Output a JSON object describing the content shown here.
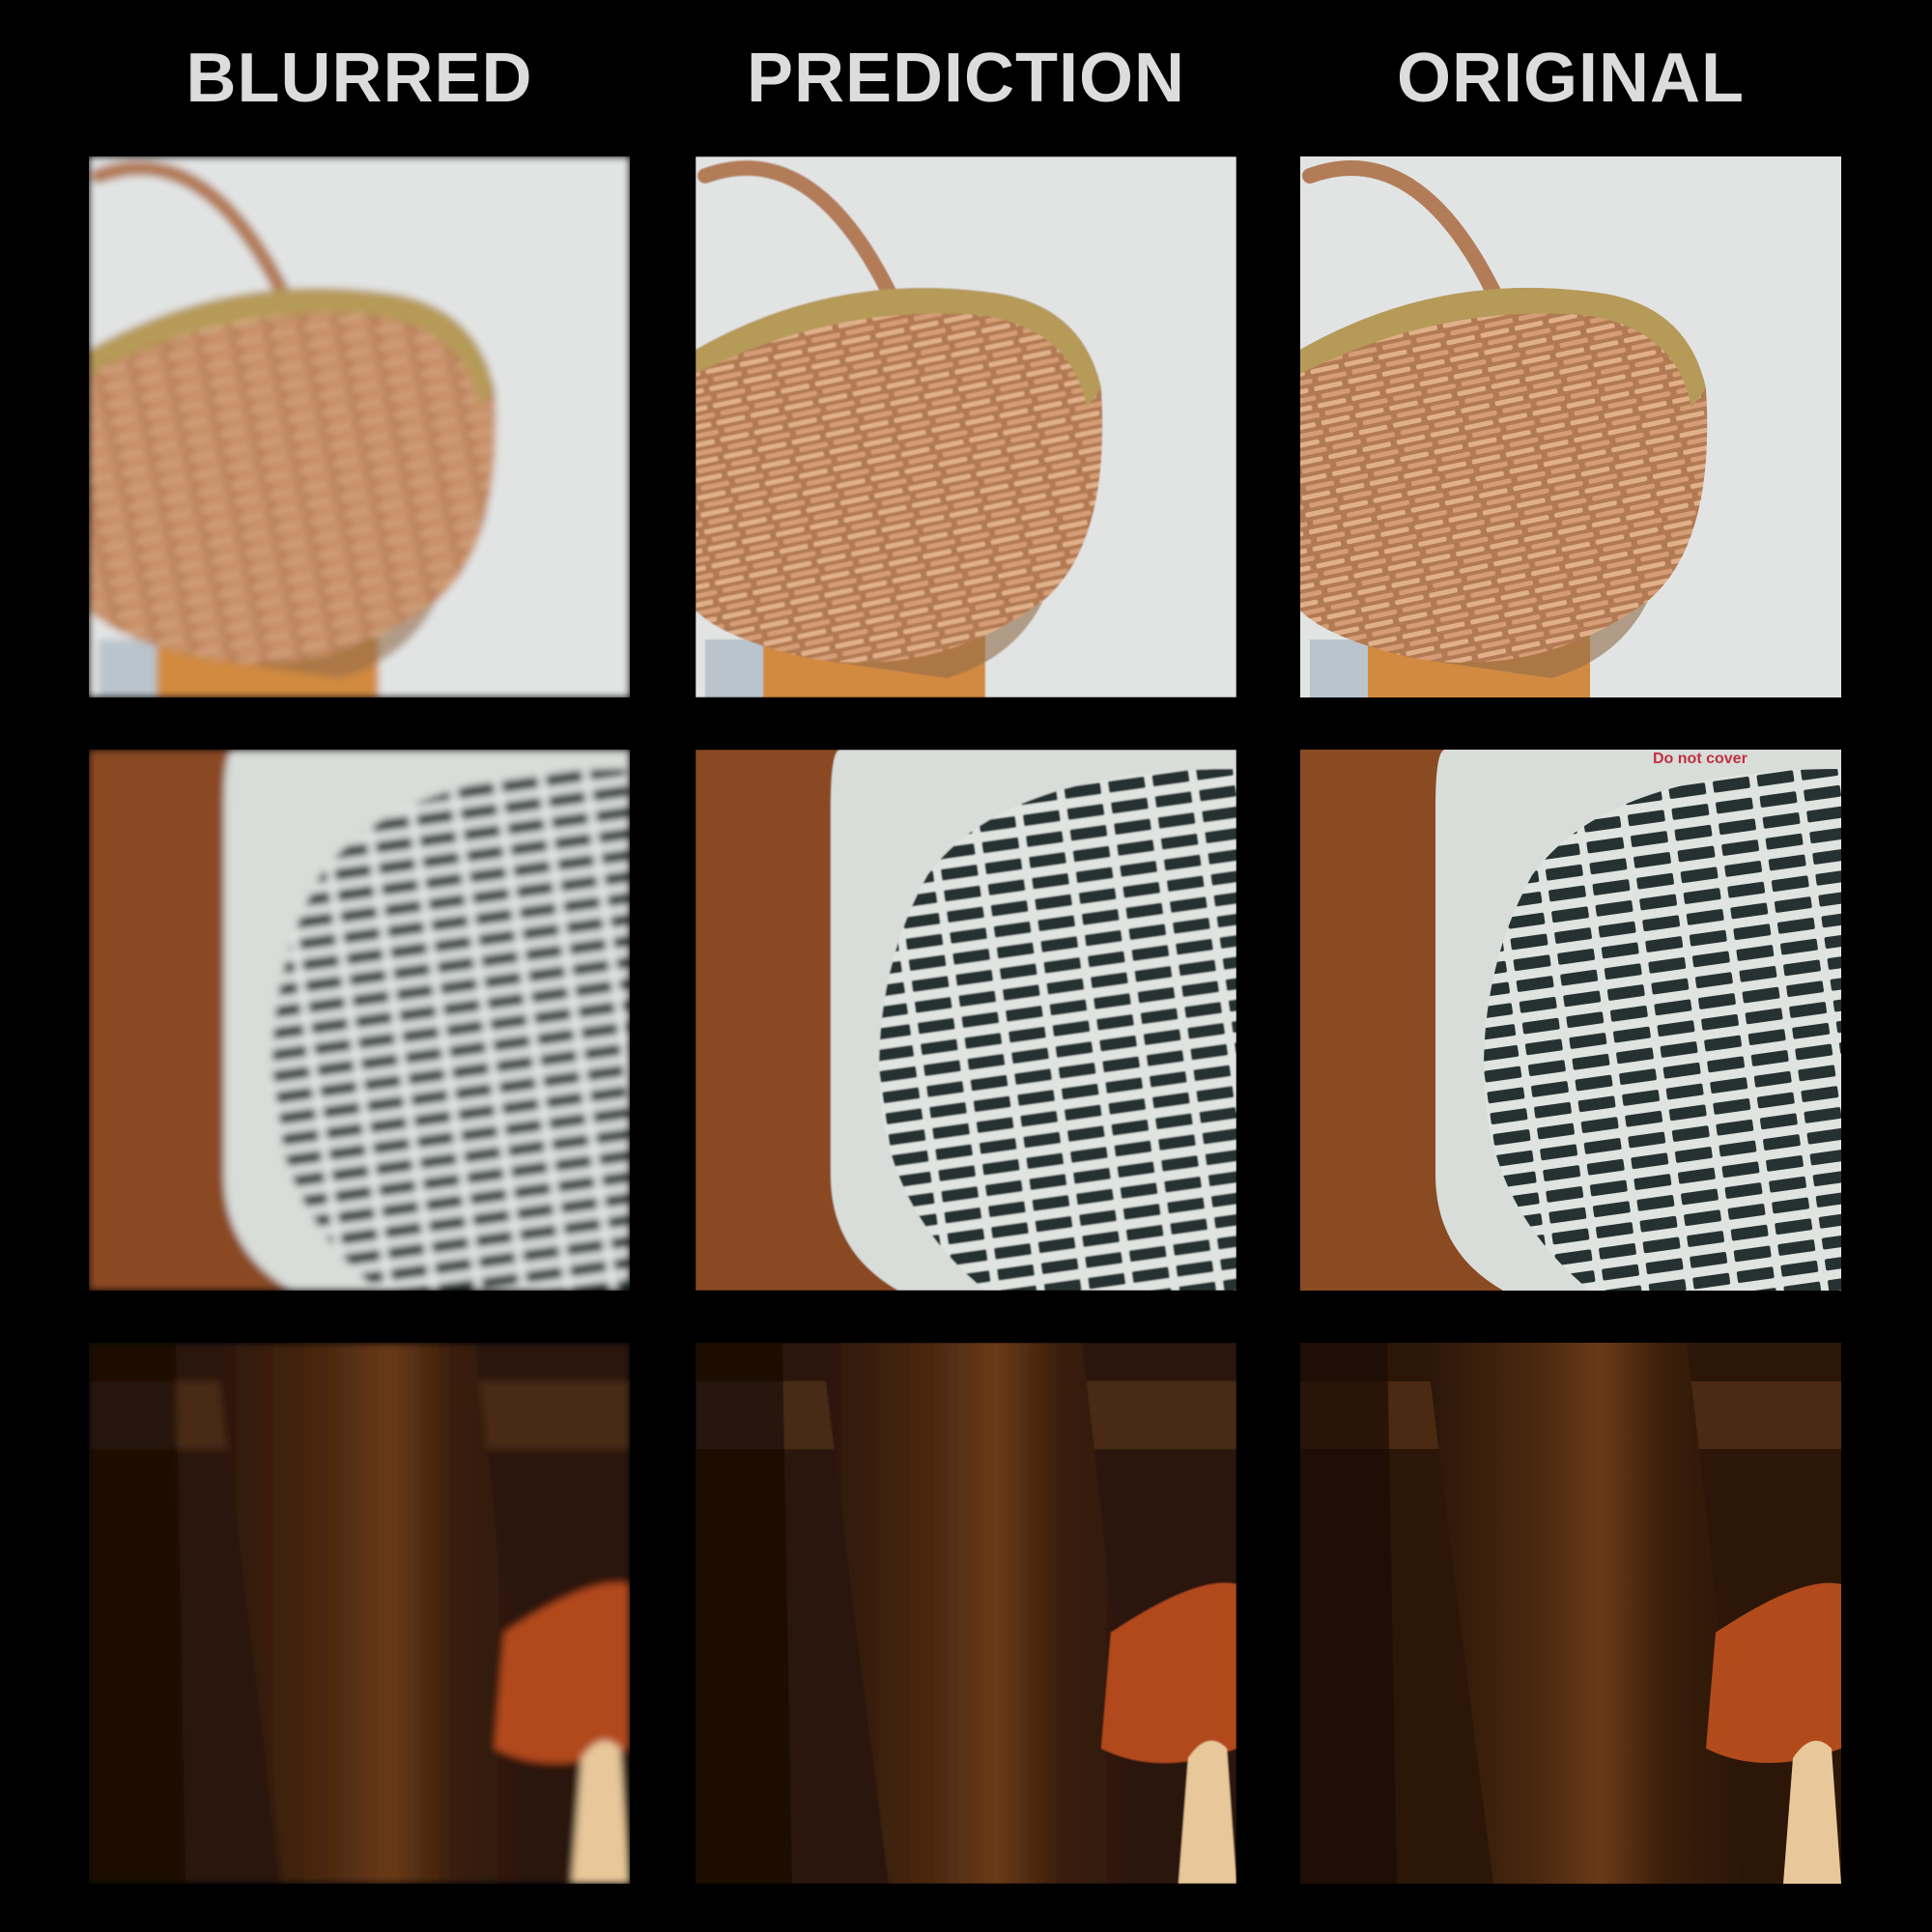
{
  "columns": [
    {
      "title": "BLURRED"
    },
    {
      "title": "PREDICTION"
    },
    {
      "title": "ORIGINAL"
    }
  ],
  "rows": [
    {
      "subject": "wicker-basket"
    },
    {
      "subject": "fan-heater"
    },
    {
      "subject": "fabric"
    }
  ],
  "heater_label": "Do not cover",
  "colors": {
    "background": "#000000",
    "title_text": "#dcdcdc",
    "wall": "#e2e4e4",
    "wicker": "#c08a62",
    "wicker_rim": "#b69a58",
    "heater_body": "#d8ddd9",
    "heater_dark": "#243030",
    "brown_bg": "#8a4a22",
    "fabric_dark": "#2b1608",
    "fabric_mid": "#5a3216",
    "cushion": "#b24a1c"
  }
}
